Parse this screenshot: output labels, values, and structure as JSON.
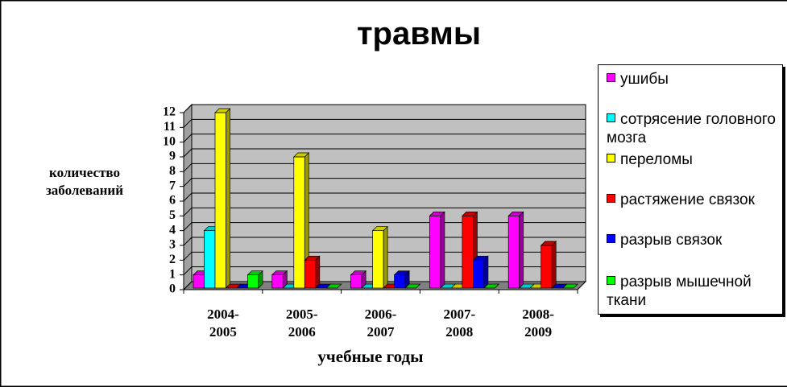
{
  "chart_data": {
    "type": "bar3d",
    "title": "травмы",
    "y_label": "количество\nзаболеваний",
    "x_label": "учебные годы",
    "categories": [
      "2004-\n2005",
      "2005-\n2006",
      "2006-\n2007",
      "2007-\n2008",
      "2008-\n2009"
    ],
    "series": [
      {
        "name": "ушибы",
        "color": "#ff00ff",
        "values": [
          1,
          1,
          1,
          5,
          5
        ]
      },
      {
        "name": "сотрясение головного мозга",
        "color": "#00ffff",
        "values": [
          4,
          0,
          0,
          0,
          0
        ]
      },
      {
        "name": "переломы",
        "color": "#ffff00",
        "values": [
          12,
          9,
          4,
          0,
          0
        ]
      },
      {
        "name": "растяжение связок",
        "color": "#ff0000",
        "values": [
          0,
          2,
          0,
          5,
          3
        ]
      },
      {
        "name": "разрыв связок",
        "color": "#0000ff",
        "values": [
          0,
          0,
          1,
          2,
          0
        ]
      },
      {
        "name": "разрыв мышечной ткани",
        "color": "#00ff00",
        "values": [
          1,
          0,
          0,
          0,
          0
        ]
      }
    ],
    "ylim": [
      0,
      12
    ],
    "yticks": [
      0,
      1,
      2,
      3,
      4,
      5,
      6,
      7,
      8,
      9,
      10,
      11,
      12
    ],
    "grid": true,
    "legend": "right"
  }
}
